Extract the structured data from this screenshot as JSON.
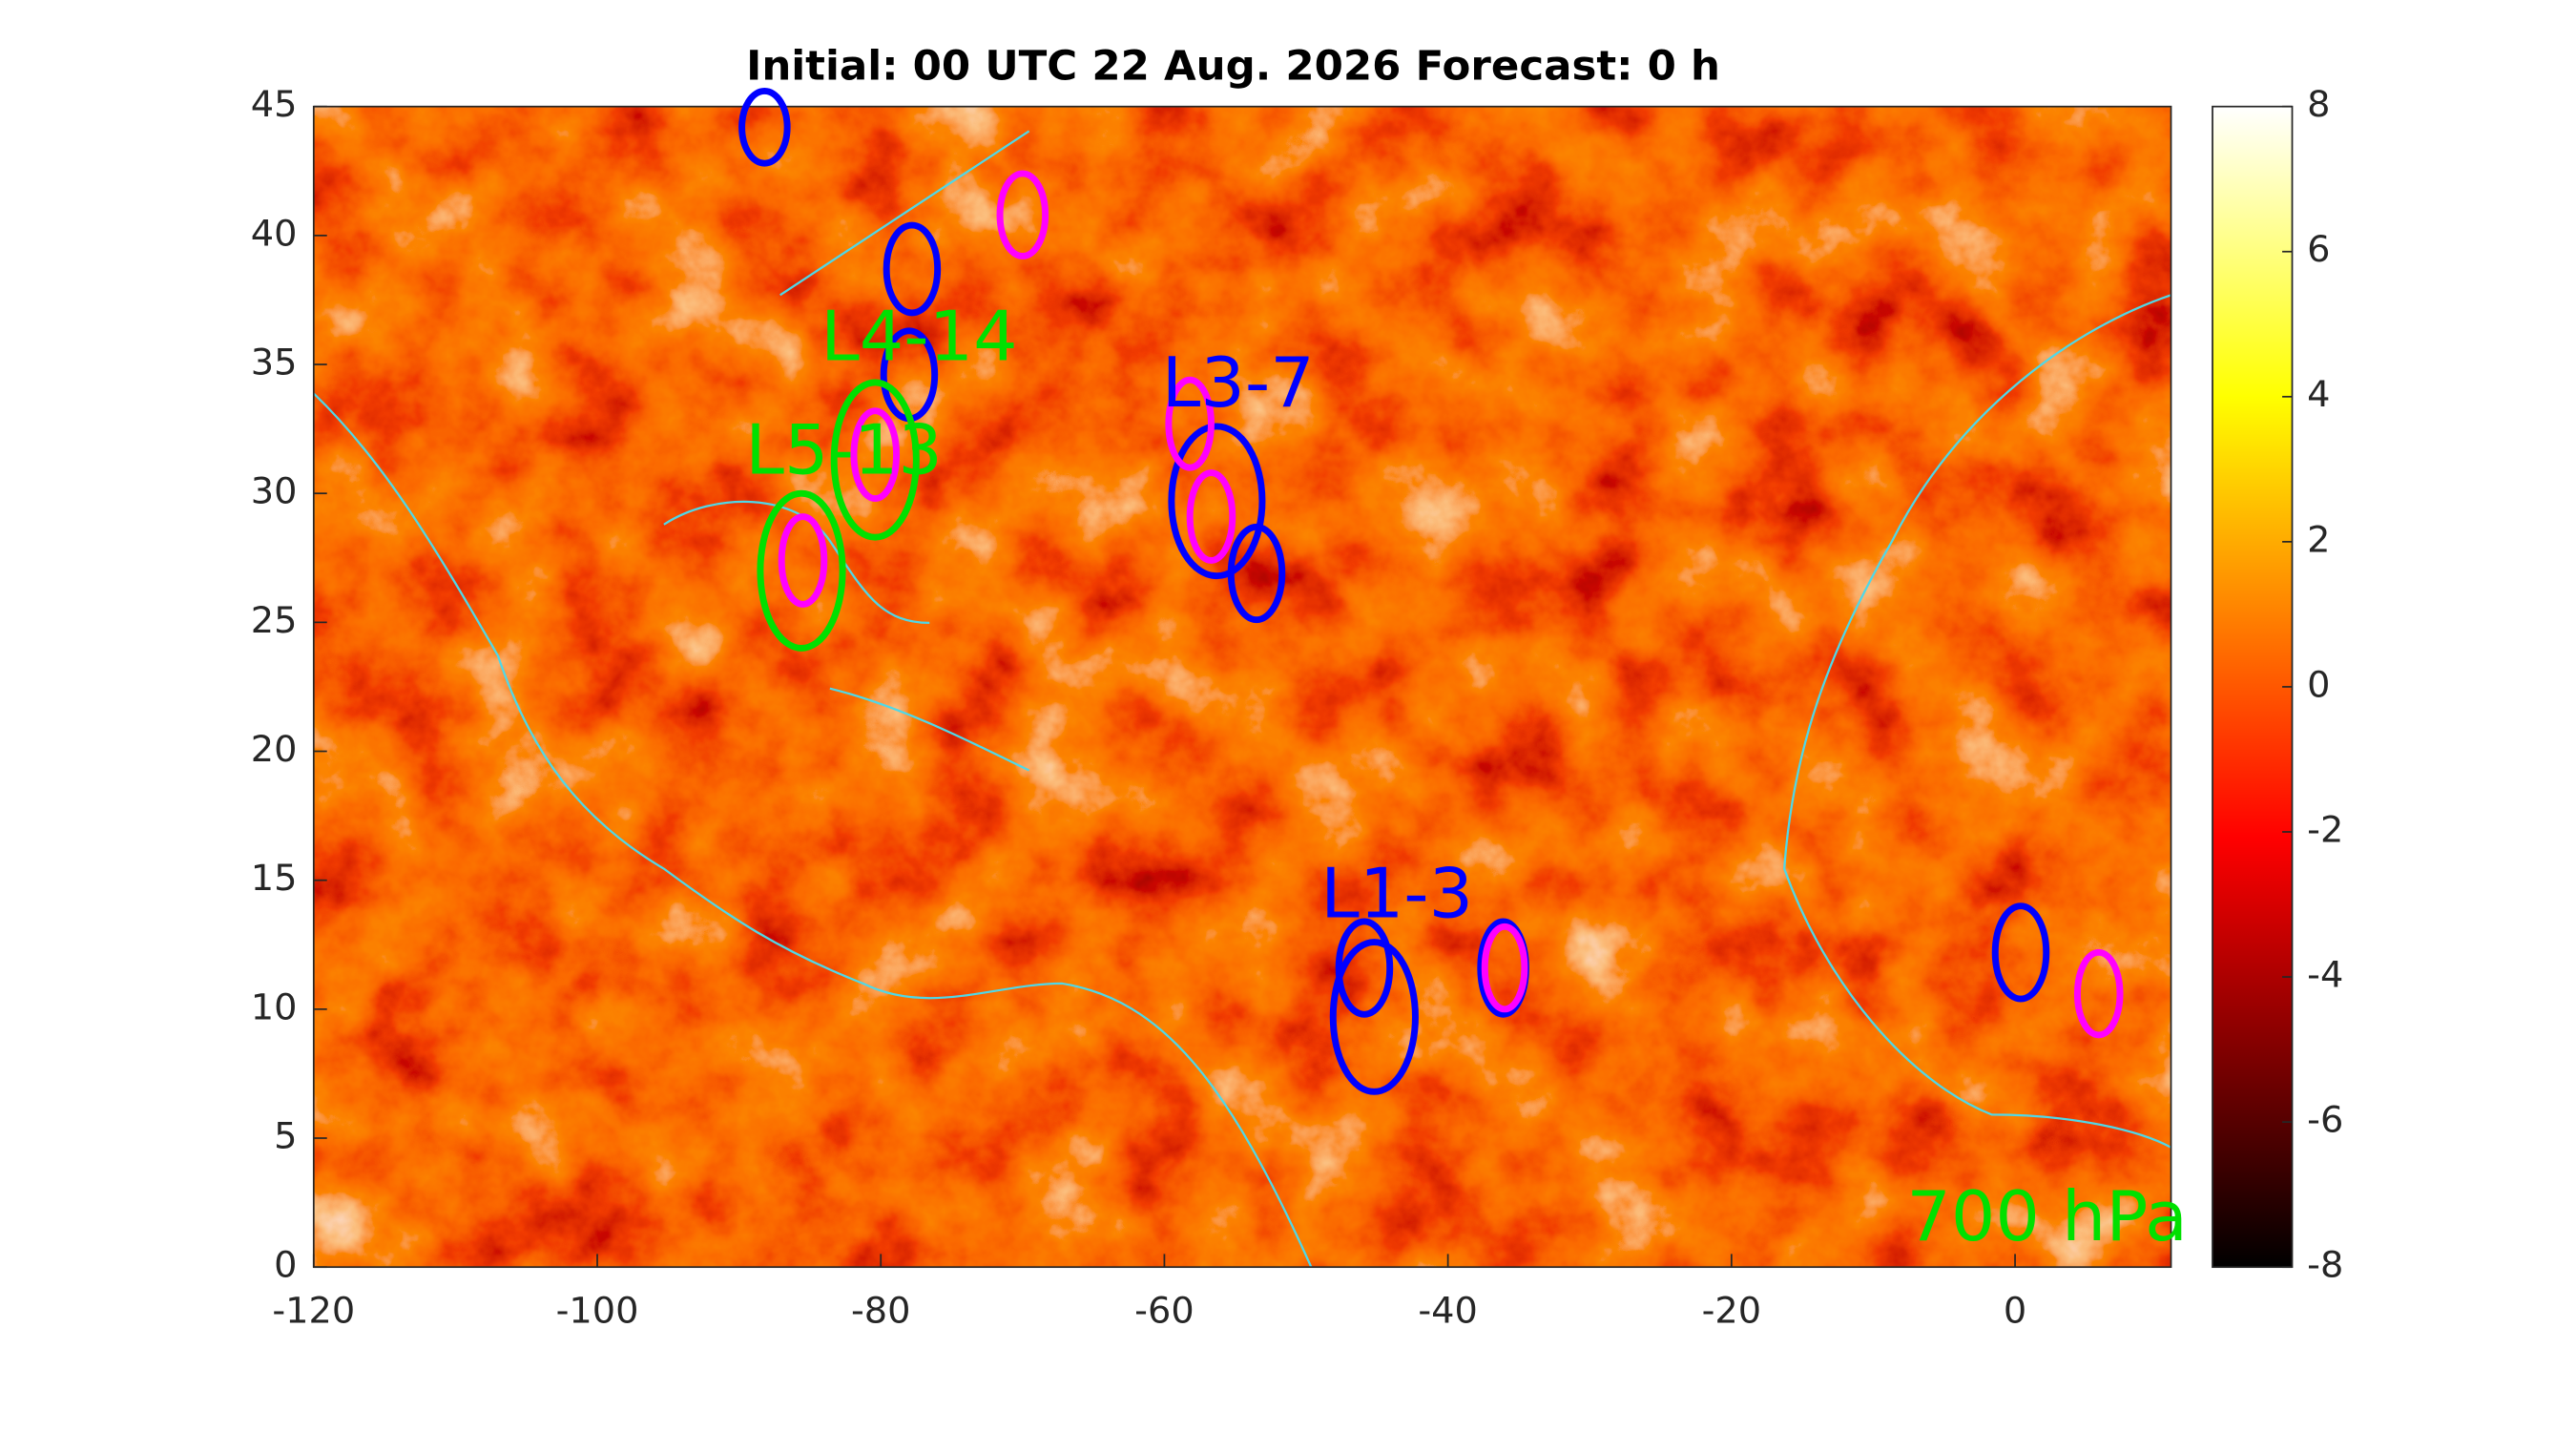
{
  "chart_data": {
    "type": "map",
    "title": "Initial: 00 UTC 22 Aug. 2026 Forecast: 0 h",
    "xlim": [
      -120,
      11
    ],
    "ylim": [
      0,
      45
    ],
    "xticks": [
      -120,
      -100,
      -80,
      -60,
      -40,
      -20,
      0
    ],
    "yticks": [
      0,
      5,
      10,
      15,
      20,
      25,
      30,
      35,
      40,
      45
    ],
    "colorbar": {
      "lim": [
        -8,
        8
      ],
      "ticks": [
        -8,
        -6,
        -4,
        -2,
        0,
        2,
        4,
        6,
        8
      ]
    },
    "level_label": {
      "text": "700 hPa",
      "color": "#00e000"
    },
    "ellipses": [
      {
        "color": "#0000ff",
        "lon": -88.2,
        "lat": 44.2,
        "rx": 1.6,
        "ry": 1.4
      },
      {
        "color": "#0000ff",
        "lon": -77.8,
        "lat": 38.7,
        "rx": 1.8,
        "ry": 1.7
      },
      {
        "color": "#0000ff",
        "lon": -78.0,
        "lat": 34.6,
        "rx": 1.8,
        "ry": 1.7
      },
      {
        "color": "#0000ff",
        "lon": -56.3,
        "lat": 29.7,
        "rx": 3.2,
        "ry": 2.9
      },
      {
        "color": "#0000ff",
        "lon": -53.5,
        "lat": 26.9,
        "rx": 1.8,
        "ry": 1.8
      },
      {
        "color": "#0000ff",
        "lon": -45.9,
        "lat": 11.6,
        "rx": 1.8,
        "ry": 1.8
      },
      {
        "color": "#0000ff",
        "lon": -45.2,
        "lat": 9.7,
        "rx": 2.9,
        "ry": 2.9
      },
      {
        "color": "#0000ff",
        "lon": -36.1,
        "lat": 11.6,
        "rx": 1.6,
        "ry": 1.8
      },
      {
        "color": "#0000ff",
        "lon": 0.4,
        "lat": 12.2,
        "rx": 1.8,
        "ry": 1.8
      },
      {
        "color": "#ff00ff",
        "lon": -70.0,
        "lat": 40.8,
        "rx": 1.6,
        "ry": 1.6
      },
      {
        "color": "#ff00ff",
        "lon": -80.4,
        "lat": 31.5,
        "rx": 1.5,
        "ry": 1.7
      },
      {
        "color": "#ff00ff",
        "lon": -85.5,
        "lat": 27.4,
        "rx": 1.5,
        "ry": 1.7
      },
      {
        "color": "#ff00ff",
        "lon": -58.2,
        "lat": 32.7,
        "rx": 1.5,
        "ry": 1.7
      },
      {
        "color": "#ff00ff",
        "lon": -56.7,
        "lat": 29.1,
        "rx": 1.5,
        "ry": 1.7
      },
      {
        "color": "#ff00ff",
        "lon": -36.0,
        "lat": 11.6,
        "rx": 1.4,
        "ry": 1.6
      },
      {
        "color": "#ff00ff",
        "lon": 5.9,
        "lat": 10.6,
        "rx": 1.5,
        "ry": 1.6
      },
      {
        "color": "#00e000",
        "lon": -85.6,
        "lat": 27.0,
        "rx": 2.9,
        "ry": 3.0
      },
      {
        "color": "#00e000",
        "lon": -80.4,
        "lat": 31.3,
        "rx": 2.9,
        "ry": 3.0
      }
    ],
    "annotations": [
      {
        "text": "L4-14",
        "color": "#00e000",
        "lon": -77.3,
        "lat": 35.9
      },
      {
        "text": "L5-13",
        "color": "#00e000",
        "lon": -82.6,
        "lat": 31.5
      },
      {
        "text": "L3-7",
        "color": "#0000ff",
        "lon": -54.8,
        "lat": 34.1
      },
      {
        "text": "L1-3",
        "color": "#0000ff",
        "lon": -43.6,
        "lat": 14.3
      }
    ]
  }
}
